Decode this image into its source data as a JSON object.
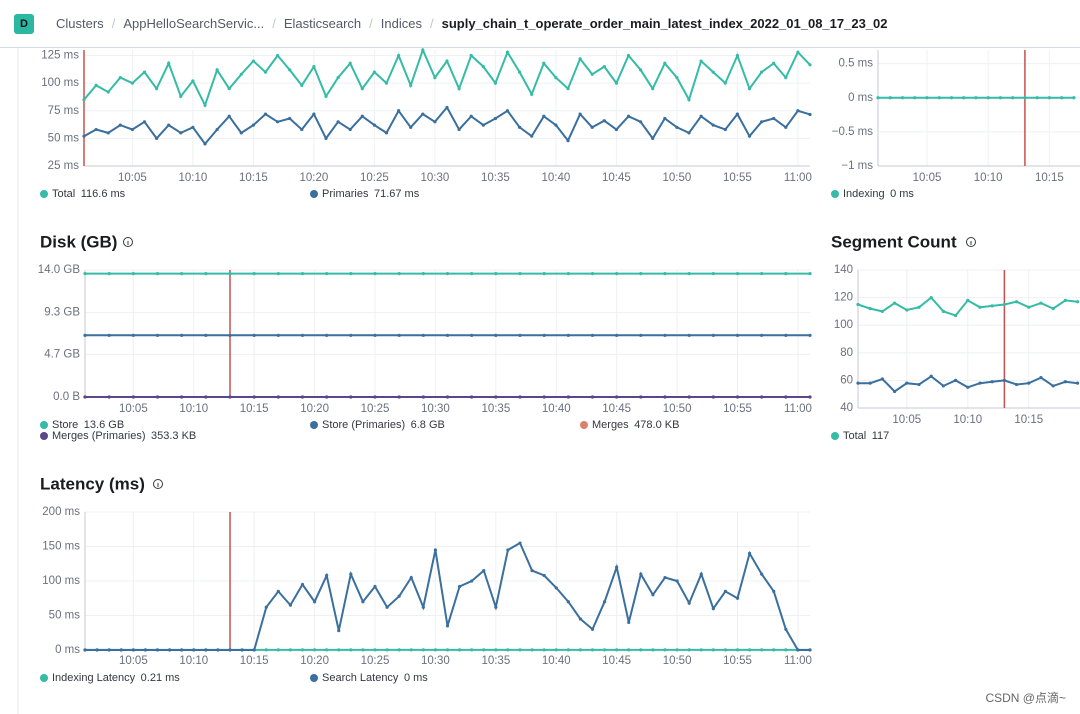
{
  "header": {
    "avatar": "D",
    "breadcrumbs": [
      "Clusters",
      "AppHelloSearchServic...",
      "Elasticsearch",
      "Indices",
      "suply_chain_t_operate_order_main_latest_index_2022_01_08_17_23_02"
    ]
  },
  "watermark": "CSDN @点滴~",
  "chart_data": [
    {
      "type": "line",
      "x": [
        1,
        2,
        3,
        4,
        5,
        6,
        7,
        8,
        9,
        10,
        11,
        12,
        13,
        14,
        15,
        16,
        17,
        18,
        19,
        20,
        21,
        22,
        23,
        24,
        25,
        26,
        27,
        28,
        29,
        30,
        31,
        32,
        33,
        34,
        35,
        36,
        37,
        38,
        39,
        40,
        41,
        42,
        43,
        44,
        45,
        46,
        47,
        48,
        49,
        50,
        51,
        52,
        53,
        54,
        55,
        56,
        57,
        58,
        59,
        60,
        61
      ],
      "xlim": [
        1,
        61
      ],
      "xticks": [
        {
          "value": 5,
          "label": "10:05"
        },
        {
          "value": 10,
          "label": "10:10"
        },
        {
          "value": 15,
          "label": "10:15"
        },
        {
          "value": 20,
          "label": "10:20"
        },
        {
          "value": 25,
          "label": "10:25"
        },
        {
          "value": 30,
          "label": "10:30"
        },
        {
          "value": 35,
          "label": "10:35"
        },
        {
          "value": 40,
          "label": "10:40"
        },
        {
          "value": 45,
          "label": "10:45"
        },
        {
          "value": 50,
          "label": "10:50"
        },
        {
          "value": 55,
          "label": "10:55"
        },
        {
          "value": 60,
          "label": "11:00"
        }
      ],
      "ylim": [
        25,
        130
      ],
      "yticks": [
        {
          "value": 25,
          "label": "25 ms"
        },
        {
          "value": 50,
          "label": "50 ms"
        },
        {
          "value": 75,
          "label": "75 ms"
        },
        {
          "value": 100,
          "label": "100 ms"
        },
        {
          "value": 125,
          "label": "125 ms"
        }
      ],
      "grid": true,
      "marker_x": 1,
      "marker_color": "#c9504d",
      "series": [
        {
          "name": "Total",
          "color": "#35bba6",
          "legend_value": "116.6 ms",
          "values": [
            85,
            98,
            92,
            105,
            100,
            110,
            95,
            118,
            88,
            102,
            80,
            112,
            95,
            108,
            120,
            110,
            125,
            112,
            98,
            115,
            88,
            105,
            118,
            95,
            110,
            100,
            125,
            98,
            130,
            105,
            120,
            95,
            125,
            115,
            100,
            128,
            110,
            90,
            118,
            105,
            95,
            122,
            108,
            115,
            100,
            125,
            112,
            95,
            118,
            105,
            85,
            120,
            110,
            100,
            125,
            95,
            110,
            118,
            105,
            128,
            116.6
          ]
        },
        {
          "name": "Primaries",
          "color": "#3a6f9e",
          "legend_value": "71.67 ms",
          "values": [
            52,
            58,
            55,
            62,
            58,
            65,
            50,
            62,
            55,
            60,
            45,
            58,
            70,
            55,
            62,
            72,
            65,
            68,
            58,
            72,
            50,
            65,
            58,
            70,
            62,
            55,
            75,
            60,
            72,
            65,
            78,
            58,
            70,
            62,
            68,
            75,
            60,
            52,
            70,
            62,
            48,
            72,
            60,
            66,
            58,
            70,
            65,
            50,
            68,
            60,
            55,
            70,
            62,
            58,
            72,
            52,
            65,
            68,
            60,
            75,
            71.67
          ]
        }
      ]
    },
    {
      "type": "line",
      "x": [
        1,
        2,
        3,
        4,
        5,
        6,
        7,
        8,
        9,
        10,
        11,
        12,
        13,
        14,
        15,
        16,
        17
      ],
      "xlim": [
        1,
        17.5
      ],
      "xticks": [
        {
          "value": 5,
          "label": "10:05"
        },
        {
          "value": 10,
          "label": "10:10"
        },
        {
          "value": 15,
          "label": "10:15"
        }
      ],
      "ylim": [
        -1,
        0.7
      ],
      "yticks": [
        {
          "value": 0.5,
          "label": "0.5 ms"
        },
        {
          "value": 0,
          "label": "0 ms"
        },
        {
          "value": -0.5,
          "label": "−0.5 ms"
        },
        {
          "value": -1,
          "label": "−1 ms"
        }
      ],
      "grid": true,
      "marker_x": 13,
      "marker_color": "#c9504d",
      "series": [
        {
          "name": "Indexing",
          "color": "#35bba6",
          "legend_value": "0 ms",
          "values": [
            0,
            0,
            0,
            0,
            0,
            0,
            0,
            0,
            0,
            0,
            0,
            0,
            0,
            0,
            0,
            0,
            0
          ]
        }
      ]
    },
    {
      "type": "line",
      "title": "Disk (GB)",
      "x": [
        1,
        3,
        5,
        7,
        9,
        11,
        13,
        15,
        17,
        19,
        21,
        23,
        25,
        27,
        29,
        31,
        33,
        35,
        37,
        39,
        41,
        43,
        45,
        47,
        49,
        51,
        53,
        55,
        57,
        59,
        61
      ],
      "xlim": [
        1,
        61
      ],
      "xticks": [
        {
          "value": 5,
          "label": "10:05"
        },
        {
          "value": 10,
          "label": "10:10"
        },
        {
          "value": 15,
          "label": "10:15"
        },
        {
          "value": 20,
          "label": "10:20"
        },
        {
          "value": 25,
          "label": "10:25"
        },
        {
          "value": 30,
          "label": "10:30"
        },
        {
          "value": 35,
          "label": "10:35"
        },
        {
          "value": 40,
          "label": "10:40"
        },
        {
          "value": 45,
          "label": "10:45"
        },
        {
          "value": 50,
          "label": "10:50"
        },
        {
          "value": 55,
          "label": "10:55"
        },
        {
          "value": 60,
          "label": "11:00"
        }
      ],
      "ylim": [
        0,
        14
      ],
      "yticks": [
        {
          "value": 0,
          "label": "0.0 B"
        },
        {
          "value": 4.7,
          "label": "4.7 GB"
        },
        {
          "value": 9.3,
          "label": "9.3 GB"
        },
        {
          "value": 14,
          "label": "14.0 GB"
        }
      ],
      "grid": true,
      "marker_x": 13,
      "marker_color": "#c9504d",
      "series": [
        {
          "name": "Store",
          "color": "#35bba6",
          "legend_value": "13.6 GB",
          "values": [
            13.6,
            13.6,
            13.6,
            13.6,
            13.6,
            13.6,
            13.6,
            13.6,
            13.6,
            13.6,
            13.6,
            13.6,
            13.6,
            13.6,
            13.6,
            13.6,
            13.6,
            13.6,
            13.6,
            13.6,
            13.6,
            13.6,
            13.6,
            13.6,
            13.6,
            13.6,
            13.6,
            13.6,
            13.6,
            13.6,
            13.6
          ]
        },
        {
          "name": "Store (Primaries)",
          "color": "#3a6f9e",
          "legend_value": "6.8 GB",
          "values": [
            6.8,
            6.8,
            6.8,
            6.8,
            6.8,
            6.8,
            6.8,
            6.8,
            6.8,
            6.8,
            6.8,
            6.8,
            6.8,
            6.8,
            6.8,
            6.8,
            6.8,
            6.8,
            6.8,
            6.8,
            6.8,
            6.8,
            6.8,
            6.8,
            6.8,
            6.8,
            6.8,
            6.8,
            6.8,
            6.8,
            6.8
          ]
        },
        {
          "name": "Merges",
          "color": "#d9826f",
          "legend_value": "478.0 KB",
          "values": [
            0.000478,
            0.000478,
            0.000478,
            0.000478,
            0.000478,
            0.000478,
            0.000478,
            0.000478,
            0.000478,
            0.000478,
            0.000478,
            0.000478,
            0.000478,
            0.000478,
            0.000478,
            0.000478,
            0.000478,
            0.000478,
            0.000478,
            0.000478,
            0.000478,
            0.000478,
            0.000478,
            0.000478,
            0.000478,
            0.000478,
            0.000478,
            0.000478,
            0.000478,
            0.000478,
            0.000478
          ]
        },
        {
          "name": "Merges (Primaries)",
          "color": "#5b4785",
          "legend_value": "353.3 KB",
          "values": [
            0.0003533,
            0.0003533,
            0.0003533,
            0.0003533,
            0.0003533,
            0.0003533,
            0.0003533,
            0.0003533,
            0.0003533,
            0.0003533,
            0.0003533,
            0.0003533,
            0.0003533,
            0.0003533,
            0.0003533,
            0.0003533,
            0.0003533,
            0.0003533,
            0.0003533,
            0.0003533,
            0.0003533,
            0.0003533,
            0.0003533,
            0.0003533,
            0.0003533,
            0.0003533,
            0.0003533,
            0.0003533,
            0.0003533,
            0.0003533,
            0.0003533
          ]
        }
      ]
    },
    {
      "type": "line",
      "title": "Segment Count",
      "x": [
        1,
        2,
        3,
        4,
        5,
        6,
        7,
        8,
        9,
        10,
        11,
        12,
        13,
        14,
        15,
        16,
        17,
        18,
        19
      ],
      "xlim": [
        1,
        19.2
      ],
      "xticks": [
        {
          "value": 5,
          "label": "10:05"
        },
        {
          "value": 10,
          "label": "10:10"
        },
        {
          "value": 15,
          "label": "10:15"
        }
      ],
      "ylim": [
        40,
        140
      ],
      "yticks": [
        40,
        60,
        80,
        100,
        120,
        140
      ],
      "grid": true,
      "marker_x": 13,
      "marker_color": "#c9504d",
      "series": [
        {
          "name": "Total",
          "color": "#35bba6",
          "legend_value": "117",
          "values": [
            115,
            112,
            110,
            116,
            111,
            113,
            120,
            110,
            107,
            118,
            113,
            114,
            115,
            117,
            113,
            116,
            112,
            118,
            117
          ]
        },
        {
          "color": "#3a6f9e",
          "values": [
            58,
            58,
            61,
            52,
            58,
            57,
            63,
            56,
            60,
            55,
            58,
            59,
            60,
            57,
            58,
            62,
            56,
            59,
            58
          ]
        }
      ]
    },
    {
      "type": "line",
      "title": "Latency (ms)",
      "x": [
        1,
        2,
        3,
        4,
        5,
        6,
        7,
        8,
        9,
        10,
        11,
        12,
        13,
        14,
        15,
        16,
        17,
        18,
        19,
        20,
        21,
        22,
        23,
        24,
        25,
        26,
        27,
        28,
        29,
        30,
        31,
        32,
        33,
        34,
        35,
        36,
        37,
        38,
        39,
        40,
        41,
        42,
        43,
        44,
        45,
        46,
        47,
        48,
        49,
        50,
        51,
        52,
        53,
        54,
        55,
        56,
        57,
        58,
        59,
        60,
        61
      ],
      "xlim": [
        1,
        61
      ],
      "xticks": [
        {
          "value": 5,
          "label": "10:05"
        },
        {
          "value": 10,
          "label": "10:10"
        },
        {
          "value": 15,
          "label": "10:15"
        },
        {
          "value": 20,
          "label": "10:20"
        },
        {
          "value": 25,
          "label": "10:25"
        },
        {
          "value": 30,
          "label": "10:30"
        },
        {
          "value": 35,
          "label": "10:35"
        },
        {
          "value": 40,
          "label": "10:40"
        },
        {
          "value": 45,
          "label": "10:45"
        },
        {
          "value": 50,
          "label": "10:50"
        },
        {
          "value": 55,
          "label": "10:55"
        },
        {
          "value": 60,
          "label": "11:00"
        }
      ],
      "ylim": [
        0,
        200
      ],
      "yticks": [
        {
          "value": 0,
          "label": "0 ms"
        },
        {
          "value": 50,
          "label": "50 ms"
        },
        {
          "value": 100,
          "label": "100 ms"
        },
        {
          "value": 150,
          "label": "150 ms"
        },
        {
          "value": 200,
          "label": "200 ms"
        }
      ],
      "grid": true,
      "marker_x": 13,
      "marker_color": "#c9504d",
      "series": [
        {
          "name": "Indexing Latency",
          "color": "#35bba6",
          "legend_value": "0.21 ms",
          "values": [
            0.2,
            0.2,
            0.2,
            0.2,
            0.2,
            0.2,
            0.2,
            0.2,
            0.2,
            0.2,
            0.2,
            0.2,
            0.2,
            0.2,
            0.2,
            0.2,
            0.2,
            0.2,
            0.2,
            0.2,
            0.2,
            0.2,
            0.2,
            0.2,
            0.2,
            0.2,
            0.2,
            0.2,
            0.2,
            0.2,
            0.2,
            0.2,
            0.2,
            0.2,
            0.2,
            0.2,
            0.2,
            0.2,
            0.2,
            0.2,
            0.2,
            0.2,
            0.2,
            0.2,
            0.2,
            0.2,
            0.2,
            0.2,
            0.2,
            0.2,
            0.2,
            0.2,
            0.2,
            0.2,
            0.2,
            0.2,
            0.2,
            0.2,
            0.2,
            0.2,
            0.21
          ]
        },
        {
          "name": "Search Latency",
          "color": "#3a6f9e",
          "legend_value": "0 ms",
          "values": [
            0,
            0,
            0,
            0,
            0,
            0,
            0,
            0,
            0,
            0,
            0,
            0,
            0,
            0,
            0,
            62,
            85,
            65,
            95,
            70,
            108,
            28,
            110,
            70,
            92,
            62,
            78,
            105,
            62,
            145,
            35,
            92,
            100,
            115,
            62,
            145,
            155,
            115,
            108,
            90,
            70,
            45,
            30,
            70,
            120,
            40,
            110,
            80,
            105,
            100,
            68,
            110,
            60,
            85,
            75,
            140,
            110,
            85,
            30,
            0,
            0
          ]
        }
      ]
    }
  ]
}
